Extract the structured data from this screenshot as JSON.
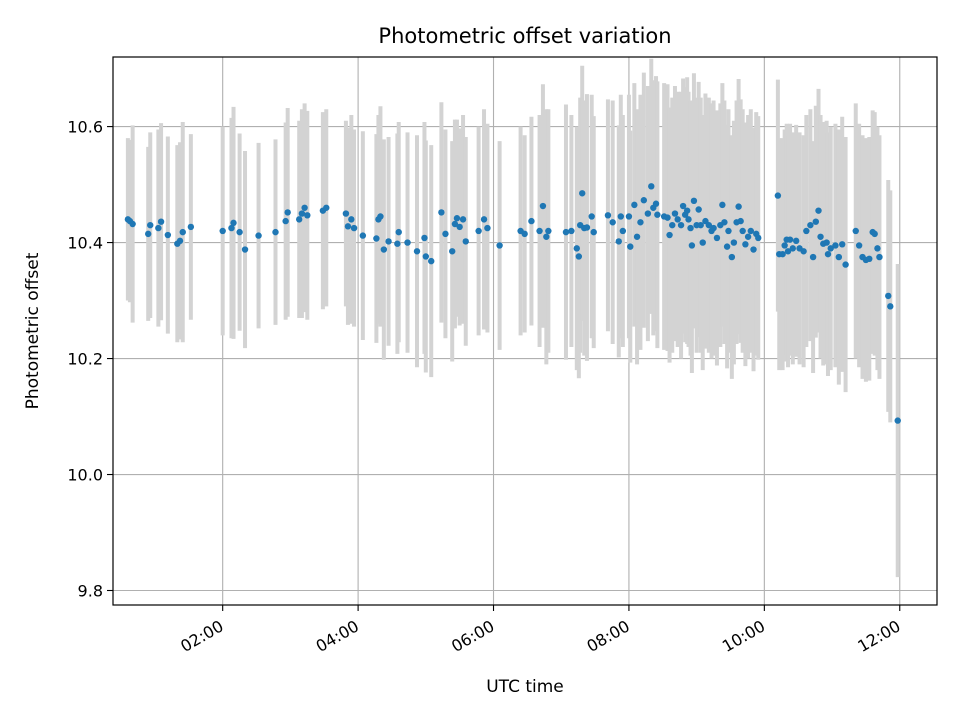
{
  "chart_data": {
    "type": "scatter",
    "title": "Photometric offset variation",
    "xlabel": "UTC time",
    "ylabel": "Photometric offset",
    "xlim_hours": [
      0.38,
      12.55
    ],
    "ylim": [
      9.775,
      10.72
    ],
    "grid": true,
    "x_ticks": [
      {
        "hour": 2,
        "label": "02:00"
      },
      {
        "hour": 4,
        "label": "04:00"
      },
      {
        "hour": 6,
        "label": "06:00"
      },
      {
        "hour": 8,
        "label": "08:00"
      },
      {
        "hour": 10,
        "label": "10:00"
      },
      {
        "hour": 12,
        "label": "12:00"
      }
    ],
    "y_ticks": [
      {
        "value": 9.8,
        "label": "9.8"
      },
      {
        "value": 10.0,
        "label": "10.0"
      },
      {
        "value": 10.2,
        "label": "10.2"
      },
      {
        "value": 10.4,
        "label": "10.4"
      },
      {
        "value": 10.6,
        "label": "10.6"
      }
    ],
    "colors": {
      "marker": "#1f77b4",
      "errorbar": "#d3d3d3",
      "grid": "#b0b0b0"
    },
    "series": [
      {
        "name": "offset",
        "points": [
          [
            0.6,
            10.44,
            0.14
          ],
          [
            0.63,
            10.437,
            0.14
          ],
          [
            0.67,
            10.432,
            0.17
          ],
          [
            0.9,
            10.415,
            0.15
          ],
          [
            0.93,
            10.43,
            0.16
          ],
          [
            1.05,
            10.425,
            0.17
          ],
          [
            1.09,
            10.436,
            0.17
          ],
          [
            1.19,
            10.413,
            0.17
          ],
          [
            1.33,
            10.398,
            0.17
          ],
          [
            1.37,
            10.403,
            0.17
          ],
          [
            1.41,
            10.418,
            0.19
          ],
          [
            1.53,
            10.427,
            0.16
          ],
          [
            2.0,
            10.42,
            0.18
          ],
          [
            2.13,
            10.425,
            0.19
          ],
          [
            2.16,
            10.434,
            0.2
          ],
          [
            2.25,
            10.418,
            0.17
          ],
          [
            2.33,
            10.388,
            0.17
          ],
          [
            2.53,
            10.412,
            0.16
          ],
          [
            2.78,
            10.418,
            0.16
          ],
          [
            2.93,
            10.437,
            0.17
          ],
          [
            2.96,
            10.452,
            0.18
          ],
          [
            3.13,
            10.44,
            0.17
          ],
          [
            3.17,
            10.45,
            0.18
          ],
          [
            3.21,
            10.46,
            0.18
          ],
          [
            3.25,
            10.447,
            0.18
          ],
          [
            3.48,
            10.455,
            0.17
          ],
          [
            3.53,
            10.46,
            0.17
          ],
          [
            3.82,
            10.45,
            0.16
          ],
          [
            3.85,
            10.428,
            0.17
          ],
          [
            3.9,
            10.44,
            0.18
          ],
          [
            3.94,
            10.425,
            0.17
          ],
          [
            4.07,
            10.412,
            0.18
          ],
          [
            4.27,
            10.407,
            0.18
          ],
          [
            4.3,
            10.44,
            0.18
          ],
          [
            4.33,
            10.445,
            0.19
          ],
          [
            4.38,
            10.388,
            0.19
          ],
          [
            4.45,
            10.402,
            0.18
          ],
          [
            4.58,
            10.398,
            0.19
          ],
          [
            4.6,
            10.418,
            0.19
          ],
          [
            4.73,
            10.4,
            0.19
          ],
          [
            4.87,
            10.385,
            0.2
          ],
          [
            4.98,
            10.408,
            0.2
          ],
          [
            5.0,
            10.376,
            0.2
          ],
          [
            5.08,
            10.368,
            0.2
          ],
          [
            5.23,
            10.452,
            0.19
          ],
          [
            5.29,
            10.415,
            0.18
          ],
          [
            5.39,
            10.385,
            0.19
          ],
          [
            5.43,
            10.432,
            0.18
          ],
          [
            5.46,
            10.442,
            0.17
          ],
          [
            5.5,
            10.427,
            0.17
          ],
          [
            5.55,
            10.44,
            0.18
          ],
          [
            5.59,
            10.402,
            0.18
          ],
          [
            5.78,
            10.42,
            0.18
          ],
          [
            5.86,
            10.44,
            0.19
          ],
          [
            5.91,
            10.425,
            0.18
          ],
          [
            6.09,
            10.395,
            0.18
          ],
          [
            6.4,
            10.42,
            0.18
          ],
          [
            6.46,
            10.415,
            0.17
          ],
          [
            6.56,
            10.437,
            0.18
          ],
          [
            6.68,
            10.42,
            0.2
          ],
          [
            6.73,
            10.463,
            0.21
          ],
          [
            6.78,
            10.41,
            0.22
          ],
          [
            6.81,
            10.42,
            0.21
          ],
          [
            7.07,
            10.418,
            0.22
          ],
          [
            7.15,
            10.42,
            0.2
          ],
          [
            7.23,
            10.39,
            0.21
          ],
          [
            7.26,
            10.376,
            0.21
          ],
          [
            7.28,
            10.43,
            0.22
          ],
          [
            7.31,
            10.485,
            0.22
          ],
          [
            7.34,
            10.425,
            0.22
          ],
          [
            7.38,
            10.426,
            0.23
          ],
          [
            7.45,
            10.445,
            0.21
          ],
          [
            7.48,
            10.418,
            0.2
          ],
          [
            7.69,
            10.447,
            0.2
          ],
          [
            7.76,
            10.435,
            0.21
          ],
          [
            7.85,
            10.402,
            0.2
          ],
          [
            7.88,
            10.445,
            0.21
          ],
          [
            7.91,
            10.42,
            0.2
          ],
          [
            8.0,
            10.445,
            0.21
          ],
          [
            8.02,
            10.393,
            0.2
          ],
          [
            8.08,
            10.465,
            0.21
          ],
          [
            8.12,
            10.41,
            0.22
          ],
          [
            8.17,
            10.435,
            0.22
          ],
          [
            8.22,
            10.473,
            0.22
          ],
          [
            8.28,
            10.45,
            0.22
          ],
          [
            8.33,
            10.497,
            0.22
          ],
          [
            8.36,
            10.46,
            0.22
          ],
          [
            8.4,
            10.467,
            0.22
          ],
          [
            8.42,
            10.448,
            0.23
          ],
          [
            8.52,
            10.445,
            0.23
          ],
          [
            8.57,
            10.443,
            0.23
          ],
          [
            8.6,
            10.413,
            0.22
          ],
          [
            8.64,
            10.43,
            0.22
          ],
          [
            8.68,
            10.45,
            0.22
          ],
          [
            8.72,
            10.44,
            0.22
          ],
          [
            8.77,
            10.43,
            0.23
          ],
          [
            8.8,
            10.463,
            0.22
          ],
          [
            8.83,
            10.448,
            0.22
          ],
          [
            8.86,
            10.455,
            0.23
          ],
          [
            8.88,
            10.44,
            0.22
          ],
          [
            8.91,
            10.425,
            0.22
          ],
          [
            8.93,
            10.395,
            0.22
          ],
          [
            8.96,
            10.472,
            0.22
          ],
          [
            9.0,
            10.43,
            0.22
          ],
          [
            9.03,
            10.457,
            0.22
          ],
          [
            9.06,
            10.43,
            0.22
          ],
          [
            9.09,
            10.4,
            0.22
          ],
          [
            9.13,
            10.437,
            0.22
          ],
          [
            9.18,
            10.43,
            0.22
          ],
          [
            9.22,
            10.42,
            0.22
          ],
          [
            9.25,
            10.425,
            0.22
          ],
          [
            9.3,
            10.408,
            0.22
          ],
          [
            9.35,
            10.43,
            0.21
          ],
          [
            9.38,
            10.465,
            0.21
          ],
          [
            9.41,
            10.435,
            0.21
          ],
          [
            9.45,
            10.393,
            0.21
          ],
          [
            9.47,
            10.42,
            0.21
          ],
          [
            9.52,
            10.375,
            0.21
          ],
          [
            9.55,
            10.4,
            0.21
          ],
          [
            9.59,
            10.435,
            0.21
          ],
          [
            9.62,
            10.462,
            0.22
          ],
          [
            9.65,
            10.437,
            0.21
          ],
          [
            9.68,
            10.42,
            0.21
          ],
          [
            9.72,
            10.397,
            0.21
          ],
          [
            9.76,
            10.41,
            0.21
          ],
          [
            9.8,
            10.42,
            0.21
          ],
          [
            9.84,
            10.388,
            0.21
          ],
          [
            9.88,
            10.415,
            0.21
          ],
          [
            9.91,
            10.408,
            0.21
          ],
          [
            10.2,
            10.481,
            0.2
          ],
          [
            10.22,
            10.38,
            0.2
          ],
          [
            10.27,
            10.38,
            0.2
          ],
          [
            10.3,
            10.395,
            0.2
          ],
          [
            10.33,
            10.405,
            0.2
          ],
          [
            10.35,
            10.385,
            0.2
          ],
          [
            10.38,
            10.405,
            0.2
          ],
          [
            10.42,
            10.39,
            0.2
          ],
          [
            10.47,
            10.403,
            0.2
          ],
          [
            10.52,
            10.39,
            0.2
          ],
          [
            10.58,
            10.385,
            0.2
          ],
          [
            10.62,
            10.42,
            0.2
          ],
          [
            10.68,
            10.43,
            0.2
          ],
          [
            10.72,
            10.375,
            0.2
          ],
          [
            10.76,
            10.436,
            0.2
          ],
          [
            10.8,
            10.455,
            0.21
          ],
          [
            10.83,
            10.41,
            0.21
          ],
          [
            10.87,
            10.398,
            0.21
          ],
          [
            10.92,
            10.4,
            0.21
          ],
          [
            10.94,
            10.38,
            0.21
          ],
          [
            10.98,
            10.39,
            0.21
          ],
          [
            11.05,
            10.395,
            0.21
          ],
          [
            11.1,
            10.375,
            0.22
          ],
          [
            11.15,
            10.397,
            0.22
          ],
          [
            11.2,
            10.362,
            0.22
          ],
          [
            11.35,
            10.42,
            0.22
          ],
          [
            11.4,
            10.395,
            0.21
          ],
          [
            11.45,
            10.375,
            0.21
          ],
          [
            11.5,
            10.37,
            0.21
          ],
          [
            11.55,
            10.372,
            0.21
          ],
          [
            11.6,
            10.418,
            0.21
          ],
          [
            11.63,
            10.415,
            0.21
          ],
          [
            11.67,
            10.39,
            0.21
          ],
          [
            11.7,
            10.375,
            0.21
          ],
          [
            11.83,
            10.308,
            0.2
          ],
          [
            11.86,
            10.29,
            0.2
          ],
          [
            11.97,
            10.093,
            0.27
          ]
        ]
      }
    ]
  }
}
